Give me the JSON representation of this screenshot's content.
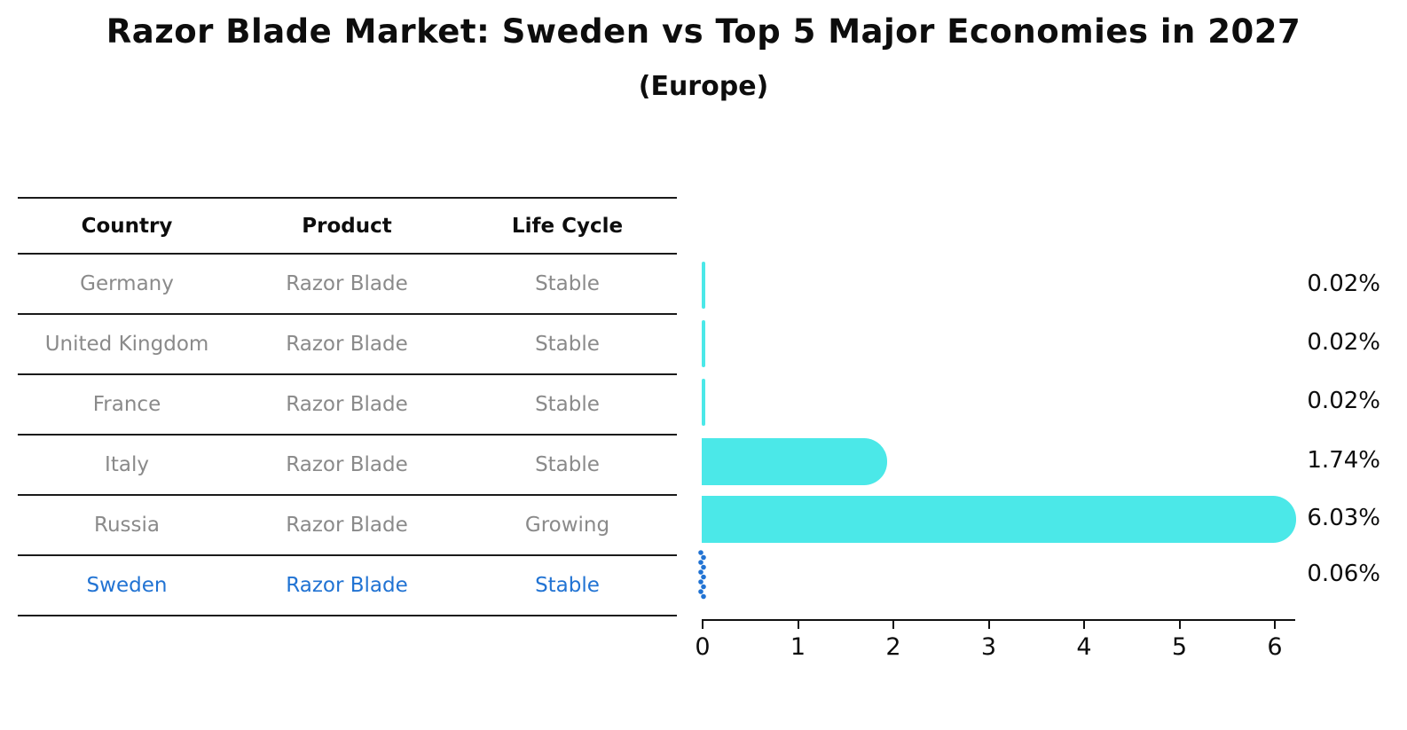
{
  "title": "Razor Blade Market: Sweden vs Top 5 Major Economies in 2027",
  "subtitle": "(Europe)",
  "table": {
    "headers": [
      "Country",
      "Product",
      "Life Cycle"
    ],
    "rows": [
      {
        "country": "Germany",
        "product": "Razor Blade",
        "life_cycle": "Stable",
        "highlight": false
      },
      {
        "country": "United Kingdom",
        "product": "Razor Blade",
        "life_cycle": "Stable",
        "highlight": false
      },
      {
        "country": "France",
        "product": "Razor Blade",
        "life_cycle": "Stable",
        "highlight": false
      },
      {
        "country": "Italy",
        "product": "Razor Blade",
        "life_cycle": "Stable",
        "highlight": false
      },
      {
        "country": "Russia",
        "product": "Razor Blade",
        "life_cycle": "Growing",
        "highlight": false
      },
      {
        "country": "Sweden",
        "product": "Razor Blade",
        "life_cycle": "Stable",
        "highlight": true
      }
    ]
  },
  "chart_data": {
    "type": "bar",
    "orientation": "horizontal",
    "title": "Razor Blade Market: Sweden vs Top 5 Major Economies in 2027",
    "subtitle": "(Europe)",
    "categories": [
      "Germany",
      "United Kingdom",
      "France",
      "Italy",
      "Russia",
      "Sweden"
    ],
    "values": [
      0.02,
      0.02,
      0.02,
      1.74,
      6.03,
      0.06
    ],
    "value_labels": [
      "0.02%",
      "0.02%",
      "0.02%",
      "1.74%",
      "6.03%",
      "0.06%"
    ],
    "styles": [
      "bar",
      "bar",
      "bar",
      "bar",
      "bar",
      "marker-dots"
    ],
    "x_ticks": [
      "0",
      "1",
      "2",
      "3",
      "4",
      "5",
      "6"
    ],
    "xlim": [
      0,
      6.25
    ],
    "grid": false,
    "legend": "none",
    "bar_color": "#4BE8E8",
    "highlight_color": "#2173d3",
    "axis_color": "#111111"
  },
  "colors": {
    "bar_cyan": "#4BE8E8",
    "sweden_blue": "#2173d3",
    "table_text_gray": "#8a8a8a",
    "text_black": "#0d0d0d"
  }
}
